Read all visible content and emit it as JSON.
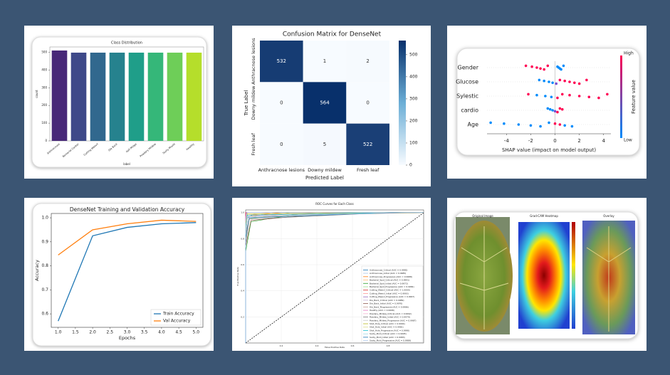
{
  "chart_data": [
    {
      "type": "bar",
      "title": "Class Distribution",
      "xlabel": "label",
      "ylabel": "count",
      "categories": [
        "Anthracnose",
        "Bacterial Canker",
        "Cutting Weevil",
        "Die Back",
        "Gall Midge",
        "Powdery Mildew",
        "Sooty Mould",
        "Healthy"
      ],
      "values": [
        510,
        498,
        498,
        498,
        498,
        498,
        498,
        498
      ],
      "colors": [
        "#482878",
        "#3e4989",
        "#31688e",
        "#26828e",
        "#1f9e89",
        "#35b779",
        "#6ece58",
        "#b5de2b"
      ],
      "ylim": [
        0,
        530
      ],
      "yticks": [
        0,
        100,
        200,
        300,
        400,
        500
      ]
    },
    {
      "type": "heatmap",
      "title": "Confusion Matrix for DenseNet",
      "xlabel": "Predicted Label",
      "ylabel": "True Label",
      "categories": [
        "Anthracnose lesions",
        "Downy mildew",
        "Fresh leaf"
      ],
      "values": [
        [
          532,
          1,
          2
        ],
        [
          0,
          564,
          0
        ],
        [
          0,
          5,
          522
        ]
      ],
      "clim": [
        0,
        564
      ],
      "cticks": [
        0,
        100,
        200,
        300,
        400,
        500
      ]
    },
    {
      "type": "beeswarm",
      "xlabel": "SHAP value (impact on model output)",
      "colorbar_title": "Feature value",
      "colorbar_high": "High",
      "colorbar_low": "Low",
      "xlim": [
        -5.6,
        4.6
      ],
      "xticks": [
        -4,
        -2,
        0,
        2,
        4
      ],
      "features": [
        {
          "name": "Gender",
          "values": [
            -2.4,
            -1.9,
            -1.5,
            -1.2,
            -0.9,
            -0.6,
            0.2,
            0.3,
            0.4,
            0.5,
            0.7
          ],
          "colors": [
            "#ff0052",
            "#ff0052",
            "#ff0052",
            "#ff0052",
            "#ff0052",
            "#ff0052",
            "#008bfb",
            "#008bfb",
            "#008bfb",
            "#008bfb",
            "#008bfb"
          ]
        },
        {
          "name": "Glucose",
          "values": [
            -1.3,
            -0.9,
            -0.5,
            -0.2,
            0.1,
            0.4,
            0.8,
            1.2,
            1.6,
            2.0,
            2.6
          ],
          "colors": [
            "#008bfb",
            "#008bfb",
            "#008bfb",
            "#008bfb",
            "#7a4fd0",
            "#ff0052",
            "#ff0052",
            "#ff0052",
            "#ff0052",
            "#ff0052",
            "#ff0052"
          ]
        },
        {
          "name": "Sylestic",
          "values": [
            -2.2,
            -1.5,
            -0.8,
            -0.3,
            0.2,
            0.6,
            1.2,
            2.0,
            2.8,
            3.6,
            4.3
          ],
          "colors": [
            "#ff0052",
            "#008bfb",
            "#008bfb",
            "#008bfb",
            "#ff0052",
            "#ff0052",
            "#ff0052",
            "#ff0052",
            "#ff0052",
            "#ff0052",
            "#ff0052"
          ]
        },
        {
          "name": "cardio",
          "values": [
            -0.6,
            -0.4,
            -0.2,
            0,
            0.2,
            0.4,
            0.6
          ],
          "colors": [
            "#008bfb",
            "#008bfb",
            "#008bfb",
            "#7a4fd0",
            "#ff0052",
            "#ff0052",
            "#ff0052"
          ]
        },
        {
          "name": "Age",
          "values": [
            -5.3,
            -4.2,
            -3.0,
            -2.0,
            -1.2,
            -0.5,
            0,
            0.4,
            0.8,
            1.4
          ],
          "colors": [
            "#008bfb",
            "#008bfb",
            "#008bfb",
            "#008bfb",
            "#008bfb",
            "#008bfb",
            "#ff0052",
            "#ff0052",
            "#008bfb",
            "#008bfb"
          ]
        }
      ]
    },
    {
      "type": "line",
      "title": "DenseNet Training and Validation Accuracy",
      "xlabel": "Epochs",
      "ylabel": "Accuracy",
      "x": [
        1,
        2,
        3,
        4,
        5
      ],
      "series": [
        {
          "name": "Train Accuracy",
          "color": "#1f77b4",
          "values": [
            0.57,
            0.925,
            0.96,
            0.975,
            0.98
          ]
        },
        {
          "name": "Val Accuracy",
          "color": "#ff7f0e",
          "values": [
            0.845,
            0.95,
            0.975,
            0.99,
            0.985
          ]
        }
      ],
      "xlim": [
        0.8,
        5.2
      ],
      "xticks": [
        {
          "value": 1,
          "label": "1.0"
        },
        1.5,
        {
          "value": 2,
          "label": "2.0"
        },
        2.5,
        {
          "value": 3,
          "label": "3.0"
        },
        3.5,
        {
          "value": 4,
          "label": "4.0"
        },
        4.5,
        {
          "value": 5,
          "label": "5.0"
        }
      ],
      "ylim": [
        0.544,
        1.018
      ],
      "yticks": [
        0.6,
        0.7,
        0.8,
        0.9,
        {
          "value": 1,
          "label": "1.0"
        }
      ],
      "legend": "lower right"
    },
    {
      "type": "roc",
      "title": "ROC Curves for Each Class",
      "xlabel": "False Positive Rate",
      "ylabel": "True Positive Rate",
      "xlim": [
        0,
        1
      ],
      "ylim": [
        0,
        1.02
      ],
      "xticks": [
        0.2,
        0.4,
        0.6,
        0.8
      ],
      "yticks": [
        0.2,
        0.4,
        0.6,
        0.8,
        {
          "value": 1,
          "label": "1.0"
        }
      ],
      "legend": "lower right",
      "series": [
        {
          "name": "Anthracnose_Critical (AUC = 0.9990)",
          "color": "#1f77b4",
          "x": [
            0,
            0,
            0.01,
            0.05,
            1
          ],
          "y": [
            0,
            0.82,
            0.96,
            0.99,
            1
          ]
        },
        {
          "name": "Anthracnose_Initial (AUC = 0.9985)",
          "color": "#aec7e8",
          "x": [
            0,
            0,
            0.02,
            0.1,
            1
          ],
          "y": [
            0,
            0.78,
            0.95,
            0.99,
            1
          ]
        },
        {
          "name": "Anthracnose_Progressive (AUC = 0.9988)",
          "color": "#ff7f0e",
          "x": [
            0,
            0,
            0.01,
            0.2,
            1
          ],
          "y": [
            0,
            0.85,
            0.97,
            1,
            1
          ]
        },
        {
          "name": "Bacterial_Spot_Critical (AUC = 0.9991)",
          "color": "#ffbb78",
          "x": [
            0,
            0,
            0.01,
            0.15,
            1
          ],
          "y": [
            0,
            0.9,
            0.98,
            1,
            1
          ]
        },
        {
          "name": "Bacterial_Spot_Initial (AUC = 0.9972)",
          "color": "#2ca02c",
          "x": [
            0,
            0,
            0.03,
            0.3,
            1
          ],
          "y": [
            0,
            0.7,
            0.93,
            0.99,
            1
          ]
        },
        {
          "name": "Bacterial_Spot_Progressive (AUC = 0.9984)",
          "color": "#98df8a",
          "x": [
            0,
            0,
            0.02,
            0.25,
            1
          ],
          "y": [
            0,
            0.8,
            0.95,
            1,
            1
          ]
        },
        {
          "name": "Cutting_Weevil_Critical (AUC = 1.0000)",
          "color": "#d62728",
          "x": [
            0,
            0,
            1
          ],
          "y": [
            0,
            1,
            1
          ]
        },
        {
          "name": "Cutting_Weevil_Initial (AUC = 0.9993)",
          "color": "#ff9896",
          "x": [
            0,
            0,
            0.01,
            1
          ],
          "y": [
            0,
            0.92,
            1,
            1
          ]
        },
        {
          "name": "Cutting_Weevil_Progressive (AUC = 0.9997)",
          "color": "#9467bd",
          "x": [
            0,
            0,
            0.005,
            1
          ],
          "y": [
            0,
            0.95,
            1,
            1
          ]
        },
        {
          "name": "Die_Back_Critical (AUC = 0.9989)",
          "color": "#c5b0d5",
          "x": [
            0,
            0,
            0.01,
            0.4,
            1
          ],
          "y": [
            0,
            0.86,
            0.97,
            1,
            1
          ]
        },
        {
          "name": "Die_Back_Initial (AUC = 0.9976)",
          "color": "#8c564b",
          "x": [
            0,
            0,
            0.03,
            0.45,
            1
          ],
          "y": [
            0,
            0.74,
            0.94,
            0.99,
            1
          ]
        },
        {
          "name": "Die_Back_Progressive (AUC = 0.9986)",
          "color": "#c49c94",
          "x": [
            0,
            0,
            0.02,
            0.5,
            1
          ],
          "y": [
            0,
            0.83,
            0.96,
            1,
            1
          ]
        },
        {
          "name": "Healthy (AUC = 0.9998)",
          "color": "#e377c2",
          "x": [
            0,
            0,
            0.004,
            1
          ],
          "y": [
            0,
            0.97,
            1,
            1
          ]
        },
        {
          "name": "Powdery_Mildew_Critical (AUC = 0.9992)",
          "color": "#f7b6d2",
          "x": [
            0,
            0,
            0.01,
            0.6,
            1
          ],
          "y": [
            0,
            0.88,
            0.98,
            1,
            1
          ]
        },
        {
          "name": "Powdery_Mildew_Initial (AUC = 0.9979)",
          "color": "#7f7f7f",
          "x": [
            0,
            0,
            0.02,
            0.65,
            1
          ],
          "y": [
            0,
            0.76,
            0.95,
            0.99,
            1
          ]
        },
        {
          "name": "Powdery_Mildew_Progressive (AUC = 0.9987)",
          "color": "#c7c7c7",
          "x": [
            0,
            0,
            0.01,
            0.7,
            1
          ],
          "y": [
            0,
            0.84,
            0.97,
            1,
            1
          ]
        },
        {
          "name": "Shot_Hole_Critical (AUC = 0.9994)",
          "color": "#bcbd22",
          "x": [
            0,
            0,
            0.01,
            1
          ],
          "y": [
            0,
            0.9,
            0.99,
            1
          ]
        },
        {
          "name": "Shot_Hole_Initial (AUC = 0.9981)",
          "color": "#dbdb8d",
          "x": [
            0,
            0,
            0.02,
            0.75,
            1
          ],
          "y": [
            0,
            0.79,
            0.96,
            1,
            1
          ]
        },
        {
          "name": "Shot_Hole_Progressive (AUC = 0.9990)",
          "color": "#17becf",
          "x": [
            0,
            0,
            0.01,
            0.8,
            1
          ],
          "y": [
            0,
            0.87,
            0.98,
            1,
            1
          ]
        },
        {
          "name": "Sooty_Mold_Critical (AUC = 0.9995)",
          "color": "#9edae5",
          "x": [
            0,
            0,
            0.008,
            1
          ],
          "y": [
            0,
            0.93,
            1,
            1
          ]
        },
        {
          "name": "Sooty_Mold_Initial (AUC = 0.9983)",
          "color": "#1f77b4",
          "x": [
            0,
            0,
            0.02,
            0.85,
            1
          ],
          "y": [
            0,
            0.8,
            0.96,
            1,
            1
          ]
        },
        {
          "name": "Sooty_Mold_Progressive (AUC = 0.9989)",
          "color": "#aec7e8",
          "x": [
            0,
            0,
            0.01,
            0.9,
            1
          ],
          "y": [
            0,
            0.86,
            0.97,
            1,
            1
          ]
        }
      ]
    },
    {
      "type": "image",
      "panels": [
        "Original Image",
        "Grad-CAM Heatmap",
        "Overlay"
      ]
    }
  ]
}
